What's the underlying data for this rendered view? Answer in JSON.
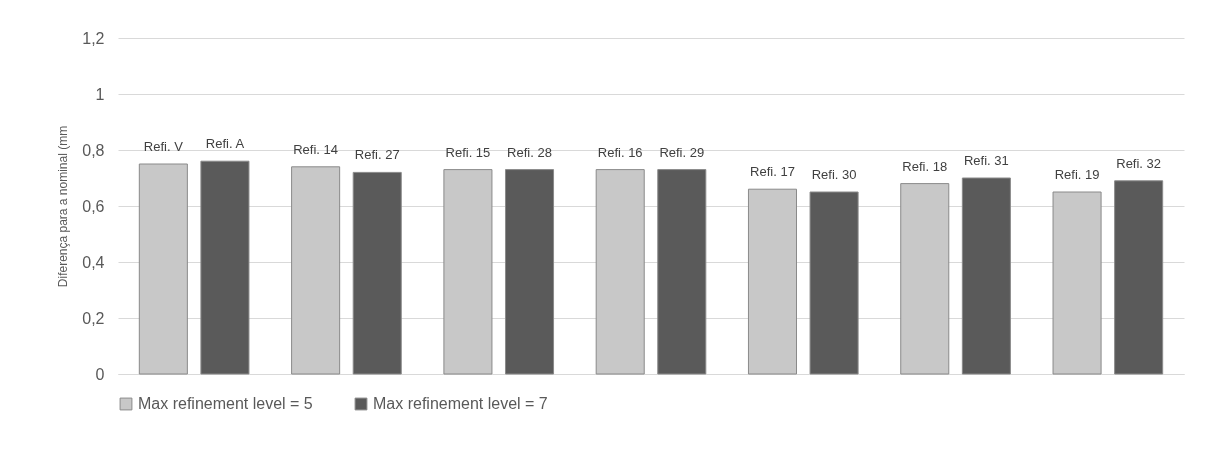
{
  "chart_data": {
    "type": "bar",
    "ylabel": "Diferença para a nominal (mm",
    "categories": [
      null,
      null,
      null,
      null,
      null,
      null,
      null
    ],
    "series": [
      {
        "name": "Max refinement level = 5",
        "color": "#c8c8c8",
        "values": [
          0.75,
          0.74,
          0.73,
          0.73,
          0.66,
          0.68,
          0.65
        ]
      },
      {
        "name": "Max refinement level = 7",
        "color": "#5a5a5a",
        "values": [
          0.76,
          0.72,
          0.73,
          0.73,
          0.65,
          0.7,
          0.69
        ]
      }
    ],
    "annotations": [
      {
        "text": "Refi. V",
        "y": 0.75
      },
      {
        "text": "Refi. A",
        "y": 0.76
      },
      {
        "text": "Refi. 14",
        "y": 0.74
      },
      {
        "text": "Refi. 27",
        "y": 0.72
      },
      {
        "text": "Refi. 15",
        "y": 0.73
      },
      {
        "text": "Refi. 28",
        "y": 0.73
      },
      {
        "text": "Refi. 16",
        "y": 0.73
      },
      {
        "text": "Refi. 29",
        "y": 0.73
      },
      {
        "text": "Refi. 17",
        "y": 0.66
      },
      {
        "text": "Refi. 30",
        "y": 0.65
      },
      {
        "text": "Refi. 18",
        "y": 0.68
      },
      {
        "text": "Refi. 31",
        "y": 0.7
      },
      {
        "text": "Refi. 19",
        "y": 0.65
      },
      {
        "text": "Refi. 32",
        "y": 0.69
      }
    ],
    "ylim": [
      0,
      1.2
    ],
    "yticks": [
      0,
      {
        "value": 0.2,
        "label": "0,2"
      },
      {
        "value": 0.4,
        "label": "0,4"
      },
      {
        "value": 0.6,
        "label": "0,6"
      },
      {
        "value": 0.8,
        "label": "0,8"
      },
      {
        "value": 1,
        "label": "1"
      },
      {
        "value": 1.2,
        "label": "1,2"
      }
    ],
    "grid": "y",
    "legend": "bottom",
    "tick_labels": "y"
  }
}
